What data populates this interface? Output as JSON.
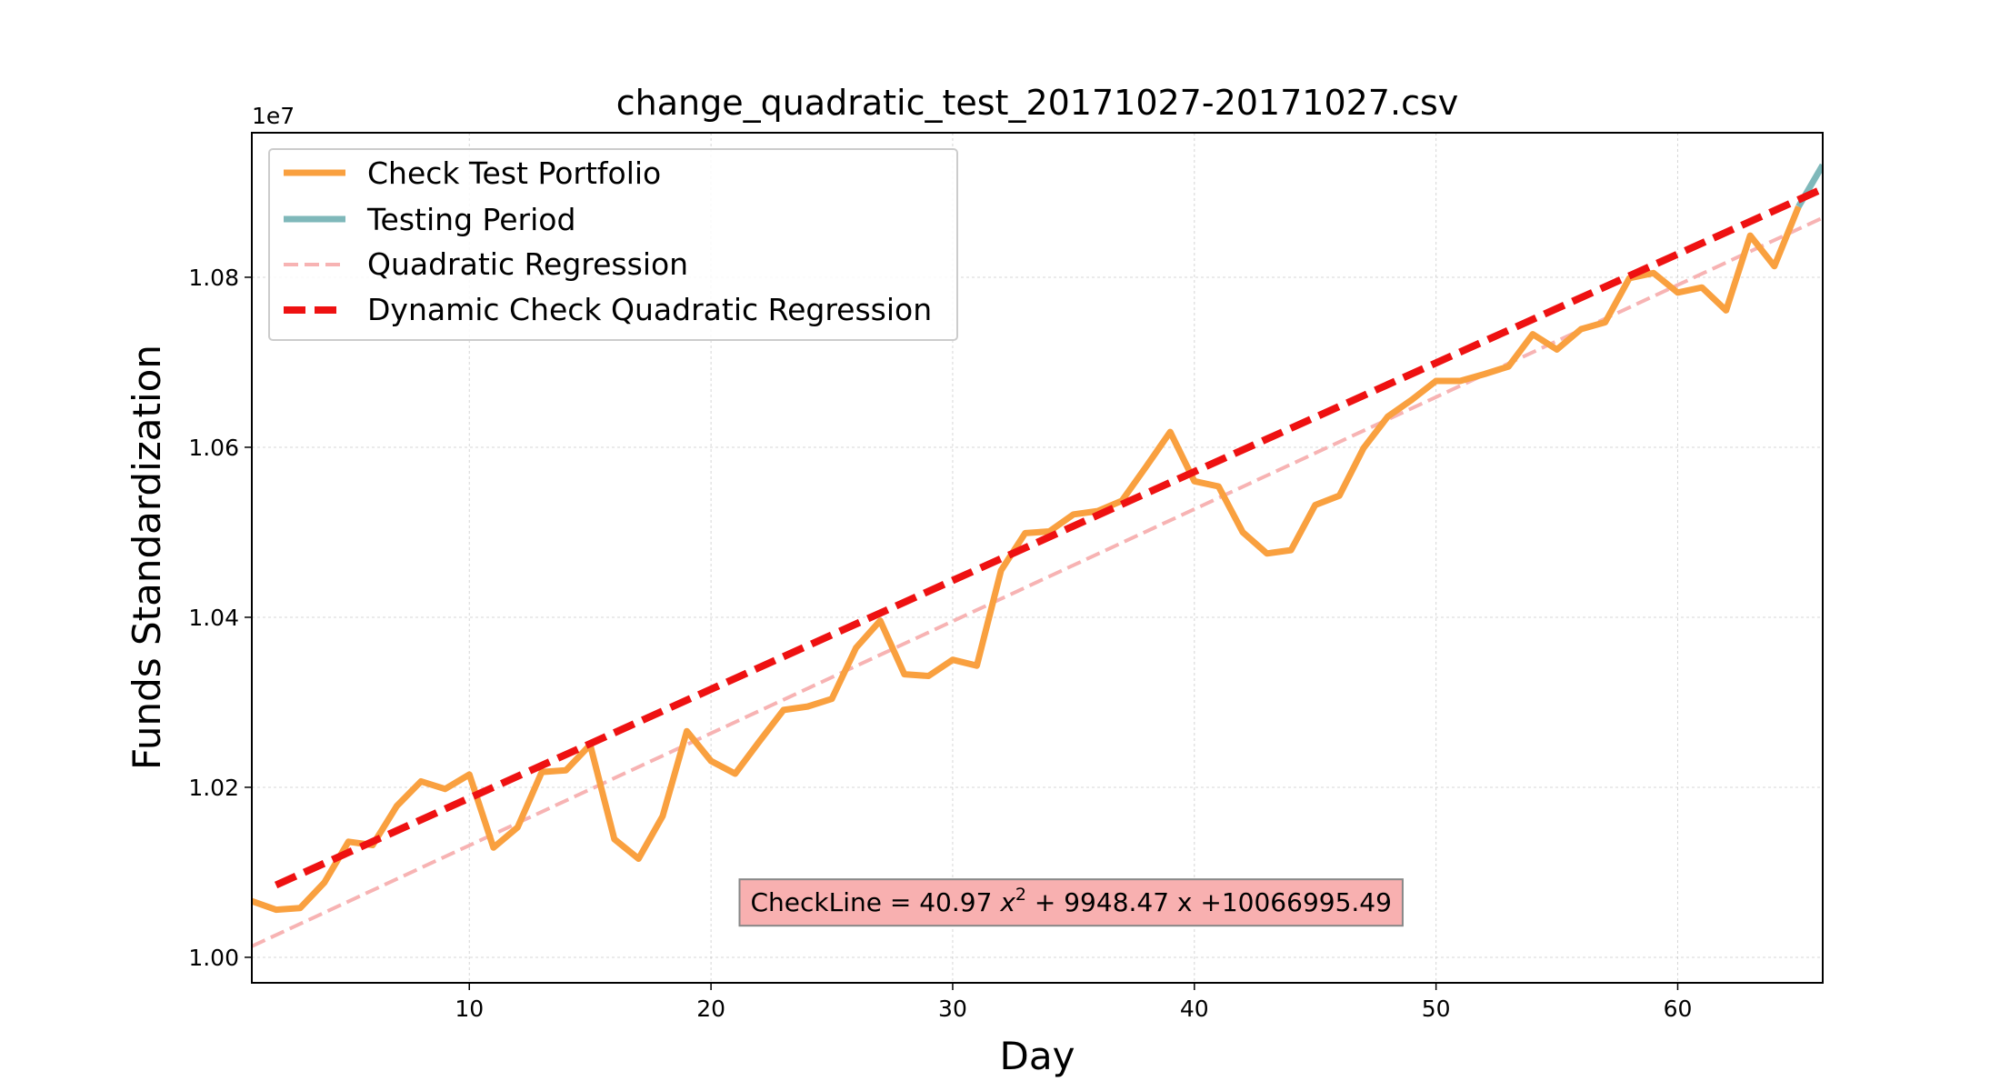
{
  "chart_data": {
    "type": "line",
    "title": "change_quadratic_test_20171027-20171027.csv",
    "xlabel": "Day",
    "ylabel": "Funds Standardization",
    "offset_text": "1e7",
    "xlim": [
      1,
      66
    ],
    "ylim": [
      0.997,
      1.097
    ],
    "xticks": [
      10,
      20,
      30,
      40,
      50,
      60
    ],
    "yticks": [
      1.0,
      1.02,
      1.04,
      1.06,
      1.08
    ],
    "ytick_labels": [
      "1.00",
      "1.02",
      "1.04",
      "1.06",
      "1.08"
    ],
    "grid": true,
    "legend_position": "top-left",
    "series": [
      {
        "name": "Check Test Portfolio",
        "color": "#f9a03f",
        "style": "solid",
        "x": [
          1,
          2,
          3,
          4,
          5,
          6,
          7,
          8,
          9,
          10,
          11,
          12,
          13,
          14,
          15,
          16,
          17,
          18,
          19,
          20,
          21,
          22,
          23,
          24,
          25,
          26,
          27,
          28,
          29,
          30,
          31,
          32,
          33,
          34,
          35,
          36,
          37,
          38,
          39,
          40,
          41,
          42,
          43,
          44,
          45,
          46,
          47,
          48,
          49,
          50,
          51,
          52,
          53,
          54,
          55,
          56,
          57,
          58,
          59,
          60,
          61,
          62,
          63,
          64,
          65
        ],
        "y": [
          1.0066,
          1.0056,
          1.0058,
          1.0088,
          1.0136,
          1.0132,
          1.0178,
          1.0207,
          1.0198,
          1.0215,
          1.0129,
          1.0153,
          1.0218,
          1.022,
          1.025,
          1.0139,
          1.0116,
          1.0166,
          1.0266,
          1.0231,
          1.0216,
          1.0254,
          1.0291,
          1.0295,
          1.0304,
          1.0364,
          1.0396,
          1.0333,
          1.0331,
          1.035,
          1.0343,
          1.0455,
          1.0499,
          1.0501,
          1.0521,
          1.0525,
          1.0537,
          1.0577,
          1.0618,
          1.056,
          1.0554,
          1.05,
          1.0475,
          1.0479,
          1.0532,
          1.0543,
          1.0599,
          1.0636,
          1.0656,
          1.0678,
          1.0678,
          1.0686,
          1.0695,
          1.0733,
          1.0715,
          1.0739,
          1.0747,
          1.0799,
          1.0805,
          1.0782,
          1.0788,
          1.0761,
          1.0849,
          1.0813,
          1.0883
        ]
      },
      {
        "name": "Testing Period",
        "color": "#7fb8ba",
        "style": "solid",
        "x": [
          65,
          66
        ],
        "y": [
          1.0883,
          1.0932
        ]
      },
      {
        "name": "Quadratic Regression",
        "color": "#f7b3b3",
        "style": "dashed",
        "x": [
          1,
          66
        ],
        "y": [
          1.0013,
          1.087
        ]
      },
      {
        "name": "Dynamic Check Quadratic Regression",
        "color": "#ee1111",
        "style": "dashed",
        "x": [
          2,
          66
        ],
        "y": [
          1.0085,
          1.0904
        ]
      }
    ],
    "annotation": {
      "prefix": "CheckLine = 40.97 ",
      "var": "x",
      "sup": "2",
      "suffix": " + 9948.47 x +10066995.49",
      "box_color": "#f8b0b0",
      "x": 34.9,
      "y": 1.0065
    }
  }
}
